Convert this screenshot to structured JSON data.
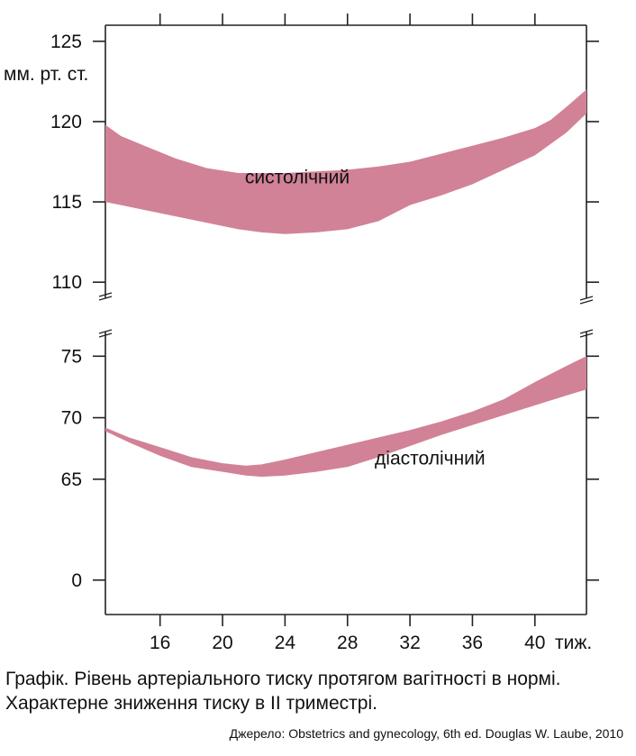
{
  "chart_data": {
    "type": "area",
    "xlabel": "тиж.",
    "x_ticks": [
      16,
      20,
      24,
      28,
      32,
      36,
      40
    ],
    "xlim": [
      12.5,
      43.3
    ],
    "unit_label": "мм. рт. ст.",
    "grid": false,
    "band_color": "#d18297",
    "axis_break": true,
    "panels": [
      {
        "name": "systolic",
        "ylim": [
          109,
          126
        ],
        "y_ticks": [
          110,
          115,
          120,
          125
        ],
        "series": [
          {
            "name": "систолічний",
            "x": [
              12.5,
              13.5,
              15,
              17,
              19,
              21,
              22.5,
              24,
              26,
              28,
              30,
              32,
              34,
              36,
              38,
              40,
              41,
              42,
              43.3
            ],
            "upper": [
              119.8,
              119.1,
              118.5,
              117.7,
              117.1,
              116.8,
              116.8,
              116.8,
              116.9,
              117.0,
              117.2,
              117.5,
              118.0,
              118.5,
              119.0,
              119.6,
              120.1,
              120.9,
              122.0
            ],
            "lower": [
              115.0,
              114.8,
              114.5,
              114.1,
              113.7,
              113.3,
              113.1,
              113.0,
              113.1,
              113.3,
              113.8,
              114.8,
              115.4,
              116.1,
              117.0,
              117.9,
              118.6,
              119.3,
              120.5
            ]
          }
        ]
      },
      {
        "name": "diastolic",
        "ylim": [
          54,
          77
        ],
        "y_ticks": [
          0,
          65,
          70,
          75
        ],
        "series": [
          {
            "name": "діастолічний",
            "x": [
              12.5,
              14,
              16,
              18,
              20,
              21.5,
              22.5,
              24,
              26,
              28,
              30,
              32,
              34,
              36,
              38,
              40,
              42,
              43.3
            ],
            "upper": [
              69.2,
              68.4,
              67.6,
              66.8,
              66.3,
              66.1,
              66.2,
              66.6,
              67.2,
              67.8,
              68.4,
              69.0,
              69.7,
              70.5,
              71.5,
              72.9,
              74.2,
              75.0
            ],
            "lower": [
              68.9,
              68.0,
              66.9,
              66.0,
              65.6,
              65.3,
              65.2,
              65.3,
              65.6,
              66.0,
              66.8,
              67.7,
              68.6,
              69.4,
              70.2,
              71.0,
              71.8,
              72.3
            ]
          }
        ]
      }
    ]
  },
  "caption": "Графік. Рівень артеріального тиску протягом вагітності в нормі. Характерне зниження тиску в ІІ триместрі.",
  "source": "Джерело: Obstetrics and gynecology, 6th ed. Douglas W. Laube, 2010"
}
